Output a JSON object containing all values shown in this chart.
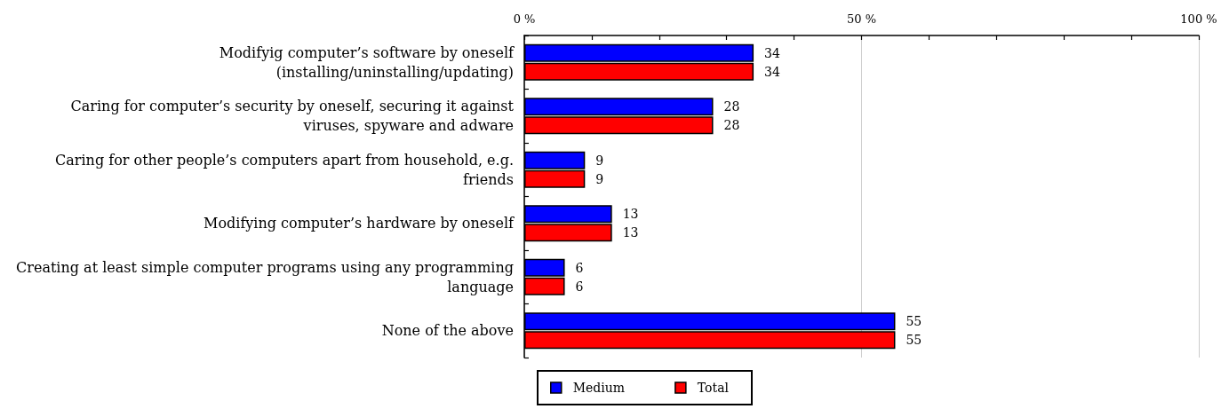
{
  "chart_data": {
    "type": "bar",
    "orientation": "horizontal",
    "categories": [
      "Modifyig computer’s software by oneself (installing/uninstalling/updating)",
      "Caring for computer’s security by oneself, securing it against viruses, spyware and adware",
      "Caring for other people’s computers apart from household, e.g. friends",
      "Modifying computer’s hardware by oneself",
      "Creating at least simple computer programs using any programming language",
      "None of the above"
    ],
    "series": [
      {
        "name": "Medium",
        "color": "#0000ff",
        "values": [
          34,
          28,
          9,
          13,
          6,
          55
        ]
      },
      {
        "name": "Total",
        "color": "#ff0000",
        "values": [
          34,
          28,
          9,
          13,
          6,
          55
        ]
      }
    ],
    "xlim": [
      0,
      100
    ],
    "xticks": [
      {
        "value": 0,
        "label": "0 %"
      },
      {
        "value": 10,
        "label": null
      },
      {
        "value": 20,
        "label": null
      },
      {
        "value": 30,
        "label": null
      },
      {
        "value": 40,
        "label": null
      },
      {
        "value": 50,
        "label": "50 %"
      },
      {
        "value": 60,
        "label": null
      },
      {
        "value": 70,
        "label": null
      },
      {
        "value": 80,
        "label": null
      },
      {
        "value": 90,
        "label": null
      },
      {
        "value": 100,
        "label": "100 %"
      }
    ],
    "grid": "x",
    "data_labels": true,
    "legend": "bottom"
  }
}
